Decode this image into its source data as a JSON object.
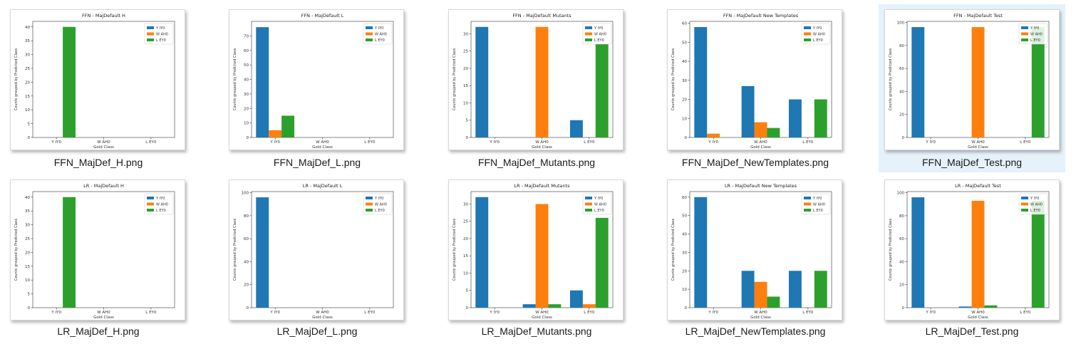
{
  "files": [
    {
      "filename": "FFN_MajDef_H.png",
      "selected": false,
      "chart_data": {
        "type": "bar",
        "title": "FFN - MajDefault H",
        "xlabel": "Gold Class",
        "ylabel": "Counts grouped by Predicted Class",
        "categories": [
          "Y IY0",
          "W AH0",
          "L EY0"
        ],
        "series": [
          {
            "name": "Y IY0",
            "color": "#1f77b4",
            "values": [
              0,
              0,
              0
            ]
          },
          {
            "name": "W AH0",
            "color": "#ff7f0e",
            "values": [
              0,
              0,
              0
            ]
          },
          {
            "name": "L EY0",
            "color": "#2ca02c",
            "values": [
              40,
              0,
              0
            ]
          }
        ],
        "ylim": [
          0,
          42
        ],
        "yticks": [
          0,
          5,
          10,
          15,
          20,
          25,
          30,
          35,
          40
        ],
        "legend": "top-right",
        "grid": false
      }
    },
    {
      "filename": "FFN_MajDef_L.png",
      "selected": false,
      "chart_data": {
        "type": "bar",
        "title": "FFN - MajDefault L",
        "xlabel": "Gold Class",
        "ylabel": "Counts grouped by Predicted Class",
        "categories": [
          "Y IY0",
          "W AH0",
          "L EY0"
        ],
        "series": [
          {
            "name": "Y IY0",
            "color": "#1f77b4",
            "values": [
              76,
              0,
              0
            ]
          },
          {
            "name": "W AH0",
            "color": "#ff7f0e",
            "values": [
              5,
              0,
              0
            ]
          },
          {
            "name": "L EY0",
            "color": "#2ca02c",
            "values": [
              15,
              0,
              0
            ]
          }
        ],
        "ylim": [
          0,
          80
        ],
        "yticks": [
          0,
          10,
          20,
          30,
          40,
          50,
          60,
          70
        ],
        "legend": "top-right",
        "grid": false
      }
    },
    {
      "filename": "FFN_MajDef_Mutants.png",
      "selected": false,
      "chart_data": {
        "type": "bar",
        "title": "FFN - MajDefault Mutants",
        "xlabel": "Gold Class",
        "ylabel": "Counts grouped by Predicted Class",
        "categories": [
          "Y IY0",
          "W AH0",
          "L EY0"
        ],
        "series": [
          {
            "name": "Y IY0",
            "color": "#1f77b4",
            "values": [
              32,
              0,
              5
            ]
          },
          {
            "name": "W AH0",
            "color": "#ff7f0e",
            "values": [
              0,
              32,
              0
            ]
          },
          {
            "name": "L EY0",
            "color": "#2ca02c",
            "values": [
              0,
              0,
              27
            ]
          }
        ],
        "ylim": [
          0,
          33.6
        ],
        "yticks": [
          0,
          5,
          10,
          15,
          20,
          25,
          30
        ],
        "legend": "top-right",
        "grid": false
      }
    },
    {
      "filename": "FFN_MajDef_NewTemplates.png",
      "selected": false,
      "chart_data": {
        "type": "bar",
        "title": "FFN - MajDefault New Templates",
        "xlabel": "Gold Class",
        "ylabel": "Counts grouped by Predicted Class",
        "categories": [
          "Y IY0",
          "W AH0",
          "L EY0"
        ],
        "series": [
          {
            "name": "Y IY0",
            "color": "#1f77b4",
            "values": [
              58,
              27,
              20
            ]
          },
          {
            "name": "W AH0",
            "color": "#ff7f0e",
            "values": [
              2,
              8,
              0
            ]
          },
          {
            "name": "L EY0",
            "color": "#2ca02c",
            "values": [
              0,
              5,
              20
            ]
          }
        ],
        "ylim": [
          0,
          61
        ],
        "yticks": [
          0,
          10,
          20,
          30,
          40,
          50,
          60
        ],
        "legend": "top-right",
        "grid": false
      }
    },
    {
      "filename": "FFN_MajDef_Test.png",
      "selected": true,
      "chart_data": {
        "type": "bar",
        "title": "FFN - MajDefault Test",
        "xlabel": "Gold Class",
        "ylabel": "Counts grouped by Predicted Class",
        "categories": [
          "Y IY0",
          "W AH0",
          "L EY0"
        ],
        "series": [
          {
            "name": "Y IY0",
            "color": "#1f77b4",
            "values": [
              96,
              0,
              0
            ]
          },
          {
            "name": "W AH0",
            "color": "#ff7f0e",
            "values": [
              0,
              96,
              0
            ]
          },
          {
            "name": "L EY0",
            "color": "#2ca02c",
            "values": [
              0,
              0,
              96
            ]
          }
        ],
        "ylim": [
          0,
          101
        ],
        "yticks": [
          0,
          20,
          40,
          60,
          80,
          100
        ],
        "legend": "top-right",
        "grid": false
      }
    },
    {
      "filename": "LR_MajDef_H.png",
      "selected": false,
      "chart_data": {
        "type": "bar",
        "title": "LR - MajDefault H",
        "xlabel": "Gold Class",
        "ylabel": "Counts grouped by Predicted Class",
        "categories": [
          "Y IY0",
          "W AH0",
          "L EY0"
        ],
        "series": [
          {
            "name": "Y IY0",
            "color": "#1f77b4",
            "values": [
              0,
              0,
              0
            ]
          },
          {
            "name": "W AH0",
            "color": "#ff7f0e",
            "values": [
              0,
              0,
              0
            ]
          },
          {
            "name": "L EY0",
            "color": "#2ca02c",
            "values": [
              40,
              0,
              0
            ]
          }
        ],
        "ylim": [
          0,
          42
        ],
        "yticks": [
          0,
          5,
          10,
          15,
          20,
          25,
          30,
          35,
          40
        ],
        "legend": "top-right",
        "grid": false
      }
    },
    {
      "filename": "LR_MajDef_L.png",
      "selected": false,
      "chart_data": {
        "type": "bar",
        "title": "LR - MajDefault L",
        "xlabel": "Gold Class",
        "ylabel": "Counts grouped by Predicted Class",
        "categories": [
          "Y IY0",
          "W AH0",
          "L EY0"
        ],
        "series": [
          {
            "name": "Y IY0",
            "color": "#1f77b4",
            "values": [
              96,
              0,
              0
            ]
          },
          {
            "name": "W AH0",
            "color": "#ff7f0e",
            "values": [
              0,
              0,
              0
            ]
          },
          {
            "name": "L EY0",
            "color": "#2ca02c",
            "values": [
              0,
              0,
              0
            ]
          }
        ],
        "ylim": [
          0,
          101
        ],
        "yticks": [
          0,
          20,
          40,
          60,
          80,
          100
        ],
        "legend": "top-right",
        "grid": false
      }
    },
    {
      "filename": "LR_MajDef_Mutants.png",
      "selected": false,
      "chart_data": {
        "type": "bar",
        "title": "LR - MajDefault Mutants",
        "xlabel": "Gold Class",
        "ylabel": "Counts grouped by Predicted Class",
        "categories": [
          "Y IY0",
          "W AH0",
          "L EY0"
        ],
        "series": [
          {
            "name": "Y IY0",
            "color": "#1f77b4",
            "values": [
              32,
              1,
              5
            ]
          },
          {
            "name": "W AH0",
            "color": "#ff7f0e",
            "values": [
              0,
              30,
              1
            ]
          },
          {
            "name": "L EY0",
            "color": "#2ca02c",
            "values": [
              0,
              1,
              26
            ]
          }
        ],
        "ylim": [
          0,
          33.6
        ],
        "yticks": [
          0,
          5,
          10,
          15,
          20,
          25,
          30
        ],
        "legend": "top-right",
        "grid": false
      }
    },
    {
      "filename": "LR_MajDef_NewTemplates.png",
      "selected": false,
      "chart_data": {
        "type": "bar",
        "title": "LR - MajDefault New Templates",
        "xlabel": "Gold Class",
        "ylabel": "Counts grouped by Predicted Class",
        "categories": [
          "Y IY0",
          "W AH0",
          "L EY0"
        ],
        "series": [
          {
            "name": "Y IY0",
            "color": "#1f77b4",
            "values": [
              60,
              20,
              20
            ]
          },
          {
            "name": "W AH0",
            "color": "#ff7f0e",
            "values": [
              0,
              14,
              0
            ]
          },
          {
            "name": "L EY0",
            "color": "#2ca02c",
            "values": [
              0,
              6,
              20
            ]
          }
        ],
        "ylim": [
          0,
          63
        ],
        "yticks": [
          0,
          10,
          20,
          30,
          40,
          50,
          60
        ],
        "legend": "top-right",
        "grid": false
      }
    },
    {
      "filename": "LR_MajDef_Test.png",
      "selected": false,
      "chart_data": {
        "type": "bar",
        "title": "LR - MajDefault Test",
        "xlabel": "Gold Class",
        "ylabel": "Counts grouped by Predicted Class",
        "categories": [
          "Y IY0",
          "W AH0",
          "L EY0"
        ],
        "series": [
          {
            "name": "Y IY0",
            "color": "#1f77b4",
            "values": [
              96,
              1,
              0
            ]
          },
          {
            "name": "W AH0",
            "color": "#ff7f0e",
            "values": [
              0,
              93,
              0
            ]
          },
          {
            "name": "L EY0",
            "color": "#2ca02c",
            "values": [
              0,
              2,
              93
            ]
          }
        ],
        "ylim": [
          0,
          101
        ],
        "yticks": [
          0,
          20,
          40,
          60,
          80,
          100
        ],
        "legend": "top-right",
        "grid": false
      }
    }
  ]
}
